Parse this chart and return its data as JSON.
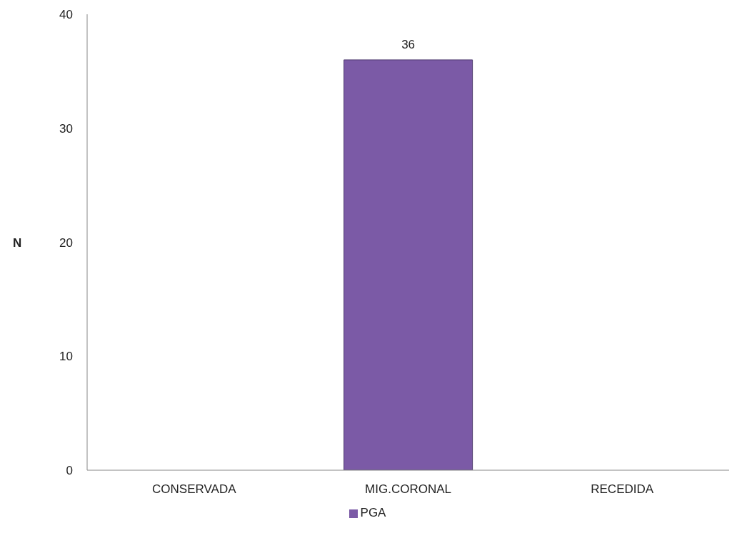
{
  "chart_data": {
    "type": "bar",
    "ylabel": "N",
    "categories": [
      "CONSERVADA",
      "MIG.CORONAL",
      "RECEDIDA"
    ],
    "series": [
      {
        "name": "PGA",
        "color": "#7b5aa6",
        "values": [
          0,
          36,
          0
        ],
        "value_labels": [
          null,
          "36",
          null
        ]
      }
    ],
    "ylim": [
      0,
      40
    ],
    "yticks": [
      0,
      10,
      20,
      30,
      40
    ],
    "grid": false,
    "legend": "bottom"
  }
}
